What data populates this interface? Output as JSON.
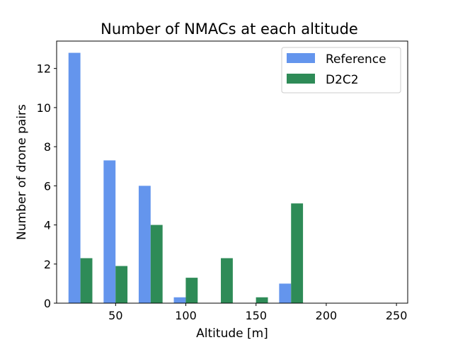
{
  "chart_data": {
    "type": "bar",
    "title": "Number of NMACs at each altitude",
    "xlabel": "Altitude [m]",
    "ylabel": "Number of drone pairs",
    "xlim": [
      8,
      258
    ],
    "ylim": [
      0,
      13.4
    ],
    "xticks": [
      50,
      100,
      150,
      200,
      250
    ],
    "yticks": [
      0,
      2,
      4,
      6,
      8,
      10,
      12
    ],
    "bar_width": 8.5,
    "legend_position": "upper right",
    "series": [
      {
        "name": "Reference",
        "color": "#6495ed",
        "x": [
          20.7,
          45.7,
          70.7,
          95.7,
          120.7,
          145.7,
          170.7,
          195.7,
          220.7,
          245.7
        ],
        "values": [
          12.8,
          7.3,
          6.0,
          0.3,
          0.0,
          0.0,
          1.0,
          0.0,
          0.0,
          0.0
        ]
      },
      {
        "name": "D2C2",
        "color": "#2e8b57",
        "x": [
          29.2,
          54.2,
          79.2,
          104.2,
          129.2,
          154.2,
          179.2,
          204.2,
          229.2,
          254.2
        ],
        "values": [
          2.3,
          1.9,
          4.0,
          1.3,
          2.3,
          0.3,
          5.1,
          0.0,
          0.0,
          0.0
        ]
      }
    ]
  }
}
